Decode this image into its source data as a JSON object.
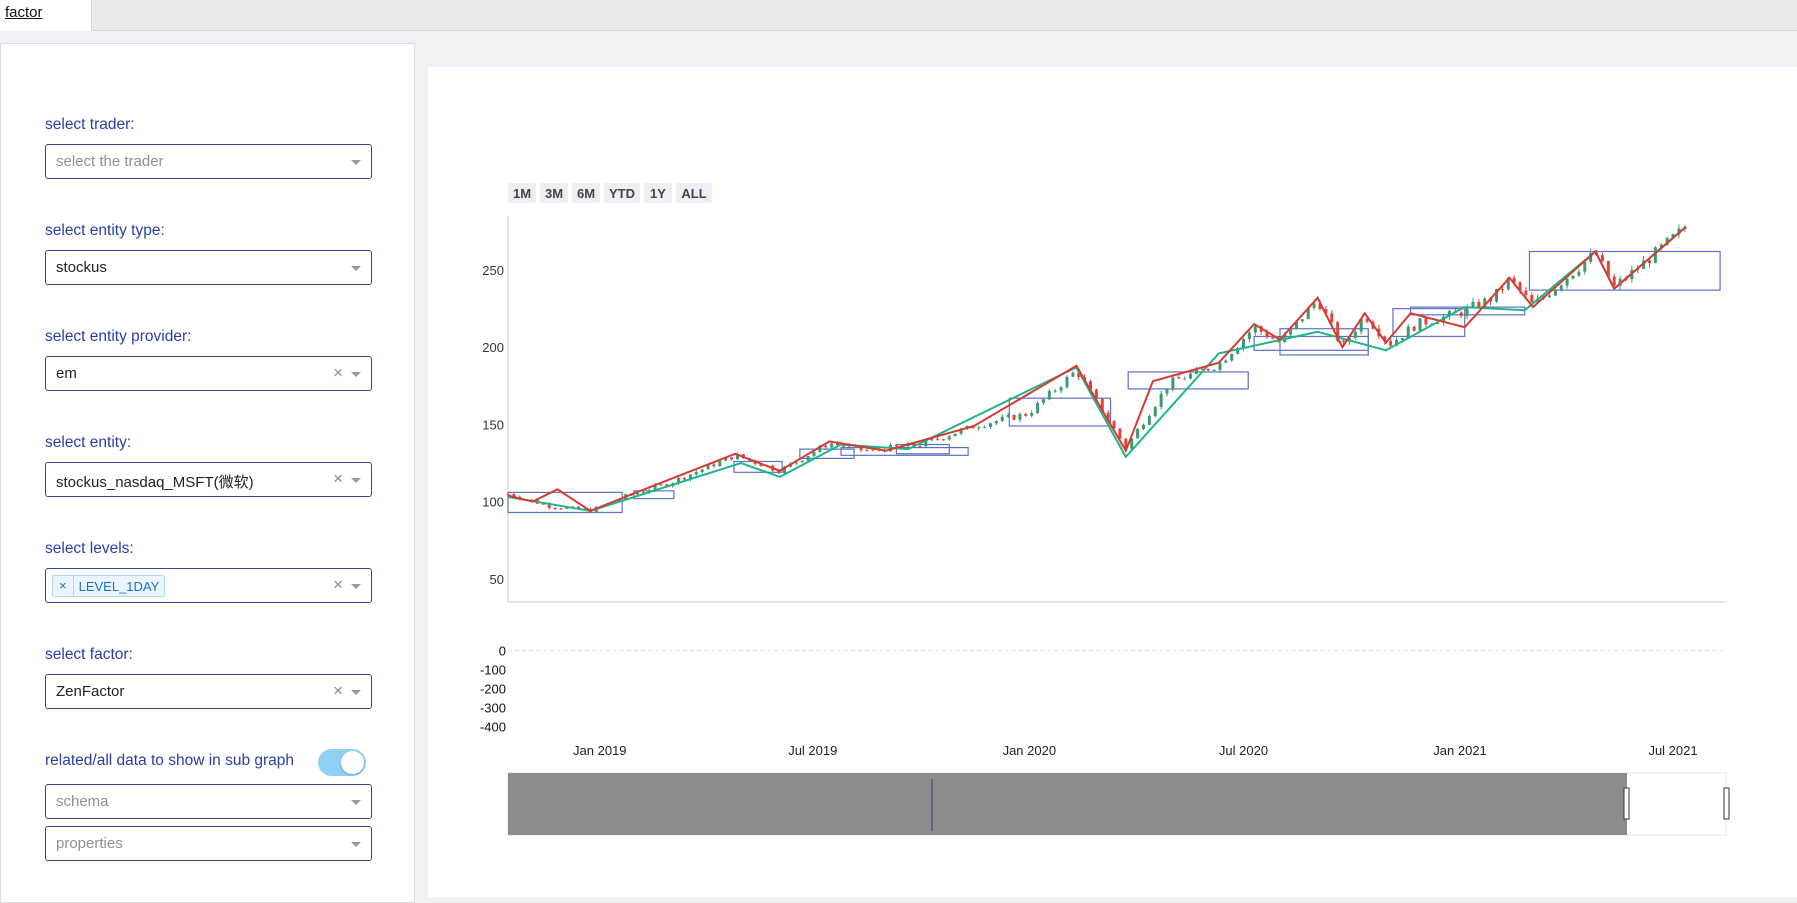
{
  "tab": {
    "label": "factor"
  },
  "form": {
    "trader_label": "select trader:",
    "trader_placeholder": "select the trader",
    "entity_type_label": "select entity type:",
    "entity_type_value": "stockus",
    "provider_label": "select entity provider:",
    "provider_value": "em",
    "entity_label": "select entity:",
    "entity_value": "stockus_nasdaq_MSFT(微软)",
    "levels_label": "select levels:",
    "level_chip": "LEVEL_1DAY",
    "factor_label": "select factor:",
    "factor_value": "ZenFactor",
    "toggle_label": "related/all data to show in sub graph",
    "toggle_on": true,
    "schema_placeholder": "schema",
    "properties_placeholder": "properties",
    "clear_glyph": "×"
  },
  "range_buttons": [
    "1M",
    "3M",
    "6M",
    "YTD",
    "1Y",
    "ALL"
  ],
  "chart_data": {
    "type": "candlestick",
    "colors": {
      "up": "#3d9970",
      "down": "#e0453a",
      "zen_up_line": "#d63b33",
      "zen_line": "#1fb58a",
      "box": "#5a72c7"
    },
    "main_y_ticks": [
      50,
      100,
      150,
      200,
      250
    ],
    "main_ylim": [
      35,
      285
    ],
    "sub_y_ticks": [
      0,
      -100,
      -200,
      -300,
      -400
    ],
    "sub_ylim": [
      -430,
      30
    ],
    "x_ticks": [
      "Jan 2019",
      "Jul 2019",
      "Jan 2020",
      "Jul 2020",
      "Jan 2021",
      "Jul 2021"
    ],
    "x_tick_dates": [
      "2019-01-01",
      "2019-07-01",
      "2020-01-01",
      "2020-07-01",
      "2021-01-01",
      "2021-07-01"
    ],
    "x_range": [
      "2018-10-15",
      "2021-08-15"
    ],
    "price_series": [
      [
        "2018-10-15",
        105
      ],
      [
        "2018-11-20",
        97
      ],
      [
        "2018-12-24",
        94
      ],
      [
        "2019-01-25",
        104
      ],
      [
        "2019-03-01",
        112
      ],
      [
        "2019-04-26",
        130
      ],
      [
        "2019-06-03",
        120
      ],
      [
        "2019-07-15",
        138
      ],
      [
        "2019-08-15",
        133
      ],
      [
        "2019-10-01",
        137
      ],
      [
        "2019-11-15",
        149
      ],
      [
        "2019-12-31",
        157
      ],
      [
        "2020-02-10",
        185
      ],
      [
        "2020-03-23",
        135
      ],
      [
        "2020-04-29",
        177
      ],
      [
        "2020-06-10",
        189
      ],
      [
        "2020-07-10",
        213
      ],
      [
        "2020-08-01",
        203
      ],
      [
        "2020-09-02",
        231
      ],
      [
        "2020-09-23",
        200
      ],
      [
        "2020-10-12",
        221
      ],
      [
        "2020-11-02",
        202
      ],
      [
        "2020-11-25",
        215
      ],
      [
        "2020-12-31",
        222
      ],
      [
        "2021-01-29",
        232
      ],
      [
        "2021-02-12",
        244
      ],
      [
        "2021-03-04",
        227
      ],
      [
        "2021-04-26",
        261
      ],
      [
        "2021-05-12",
        239
      ],
      [
        "2021-06-10",
        257
      ],
      [
        "2021-07-12",
        278
      ]
    ],
    "zen_red_line": [
      [
        "2018-10-15",
        104
      ],
      [
        "2018-11-05",
        100
      ],
      [
        "2018-11-26",
        108
      ],
      [
        "2018-12-24",
        94
      ],
      [
        "2019-02-01",
        106
      ],
      [
        "2019-04-26",
        131
      ],
      [
        "2019-06-03",
        120
      ],
      [
        "2019-07-15",
        139
      ],
      [
        "2019-09-01",
        133
      ],
      [
        "2019-11-15",
        149
      ],
      [
        "2020-02-10",
        188
      ],
      [
        "2020-03-23",
        133
      ],
      [
        "2020-04-15",
        178
      ],
      [
        "2020-06-10",
        190
      ],
      [
        "2020-07-10",
        215
      ],
      [
        "2020-08-01",
        205
      ],
      [
        "2020-09-02",
        232
      ],
      [
        "2020-09-23",
        200
      ],
      [
        "2020-10-12",
        222
      ],
      [
        "2020-10-30",
        203
      ],
      [
        "2020-11-20",
        222
      ],
      [
        "2021-01-05",
        213
      ],
      [
        "2021-02-12",
        245
      ],
      [
        "2021-03-04",
        226
      ],
      [
        "2021-04-26",
        262
      ],
      [
        "2021-05-12",
        238
      ],
      [
        "2021-07-12",
        278
      ]
    ],
    "zen_green_line": [
      [
        "2018-10-15",
        103
      ],
      [
        "2018-12-24",
        94
      ],
      [
        "2019-05-01",
        125
      ],
      [
        "2019-06-03",
        116
      ],
      [
        "2019-07-25",
        137
      ],
      [
        "2019-09-20",
        134
      ],
      [
        "2020-02-10",
        187
      ],
      [
        "2020-03-23",
        129
      ],
      [
        "2020-06-10",
        196
      ],
      [
        "2020-09-02",
        210
      ],
      [
        "2020-10-30",
        198
      ],
      [
        "2021-01-05",
        226
      ],
      [
        "2021-02-25",
        224
      ],
      [
        "2021-04-26",
        262
      ],
      [
        "2021-05-12",
        238
      ],
      [
        "2021-07-12",
        278
      ]
    ],
    "boxes": [
      {
        "from": "2018-10-15",
        "to": "2019-01-20",
        "low": 93,
        "high": 106
      },
      {
        "from": "2019-01-30",
        "to": "2019-03-05",
        "low": 102,
        "high": 107
      },
      {
        "from": "2019-04-25",
        "to": "2019-06-05",
        "low": 119,
        "high": 126
      },
      {
        "from": "2019-06-20",
        "to": "2019-08-05",
        "low": 128,
        "high": 134
      },
      {
        "from": "2019-07-25",
        "to": "2019-11-10",
        "low": 130,
        "high": 135
      },
      {
        "from": "2019-09-10",
        "to": "2019-10-25",
        "low": 131,
        "high": 137
      },
      {
        "from": "2019-12-15",
        "to": "2020-03-10",
        "low": 149,
        "high": 167
      },
      {
        "from": "2020-03-25",
        "to": "2020-07-05",
        "low": 173,
        "high": 184
      },
      {
        "from": "2020-07-10",
        "to": "2020-10-15",
        "low": 198,
        "high": 207
      },
      {
        "from": "2020-08-01",
        "to": "2020-10-15",
        "low": 195,
        "high": 212
      },
      {
        "from": "2020-11-05",
        "to": "2021-01-05",
        "low": 207,
        "high": 225
      },
      {
        "from": "2020-11-20",
        "to": "2021-02-25",
        "low": 221,
        "high": 226
      },
      {
        "from": "2021-03-01",
        "to": "2021-08-10",
        "low": 237,
        "high": 262
      }
    ],
    "zen_sub_value": 0
  }
}
